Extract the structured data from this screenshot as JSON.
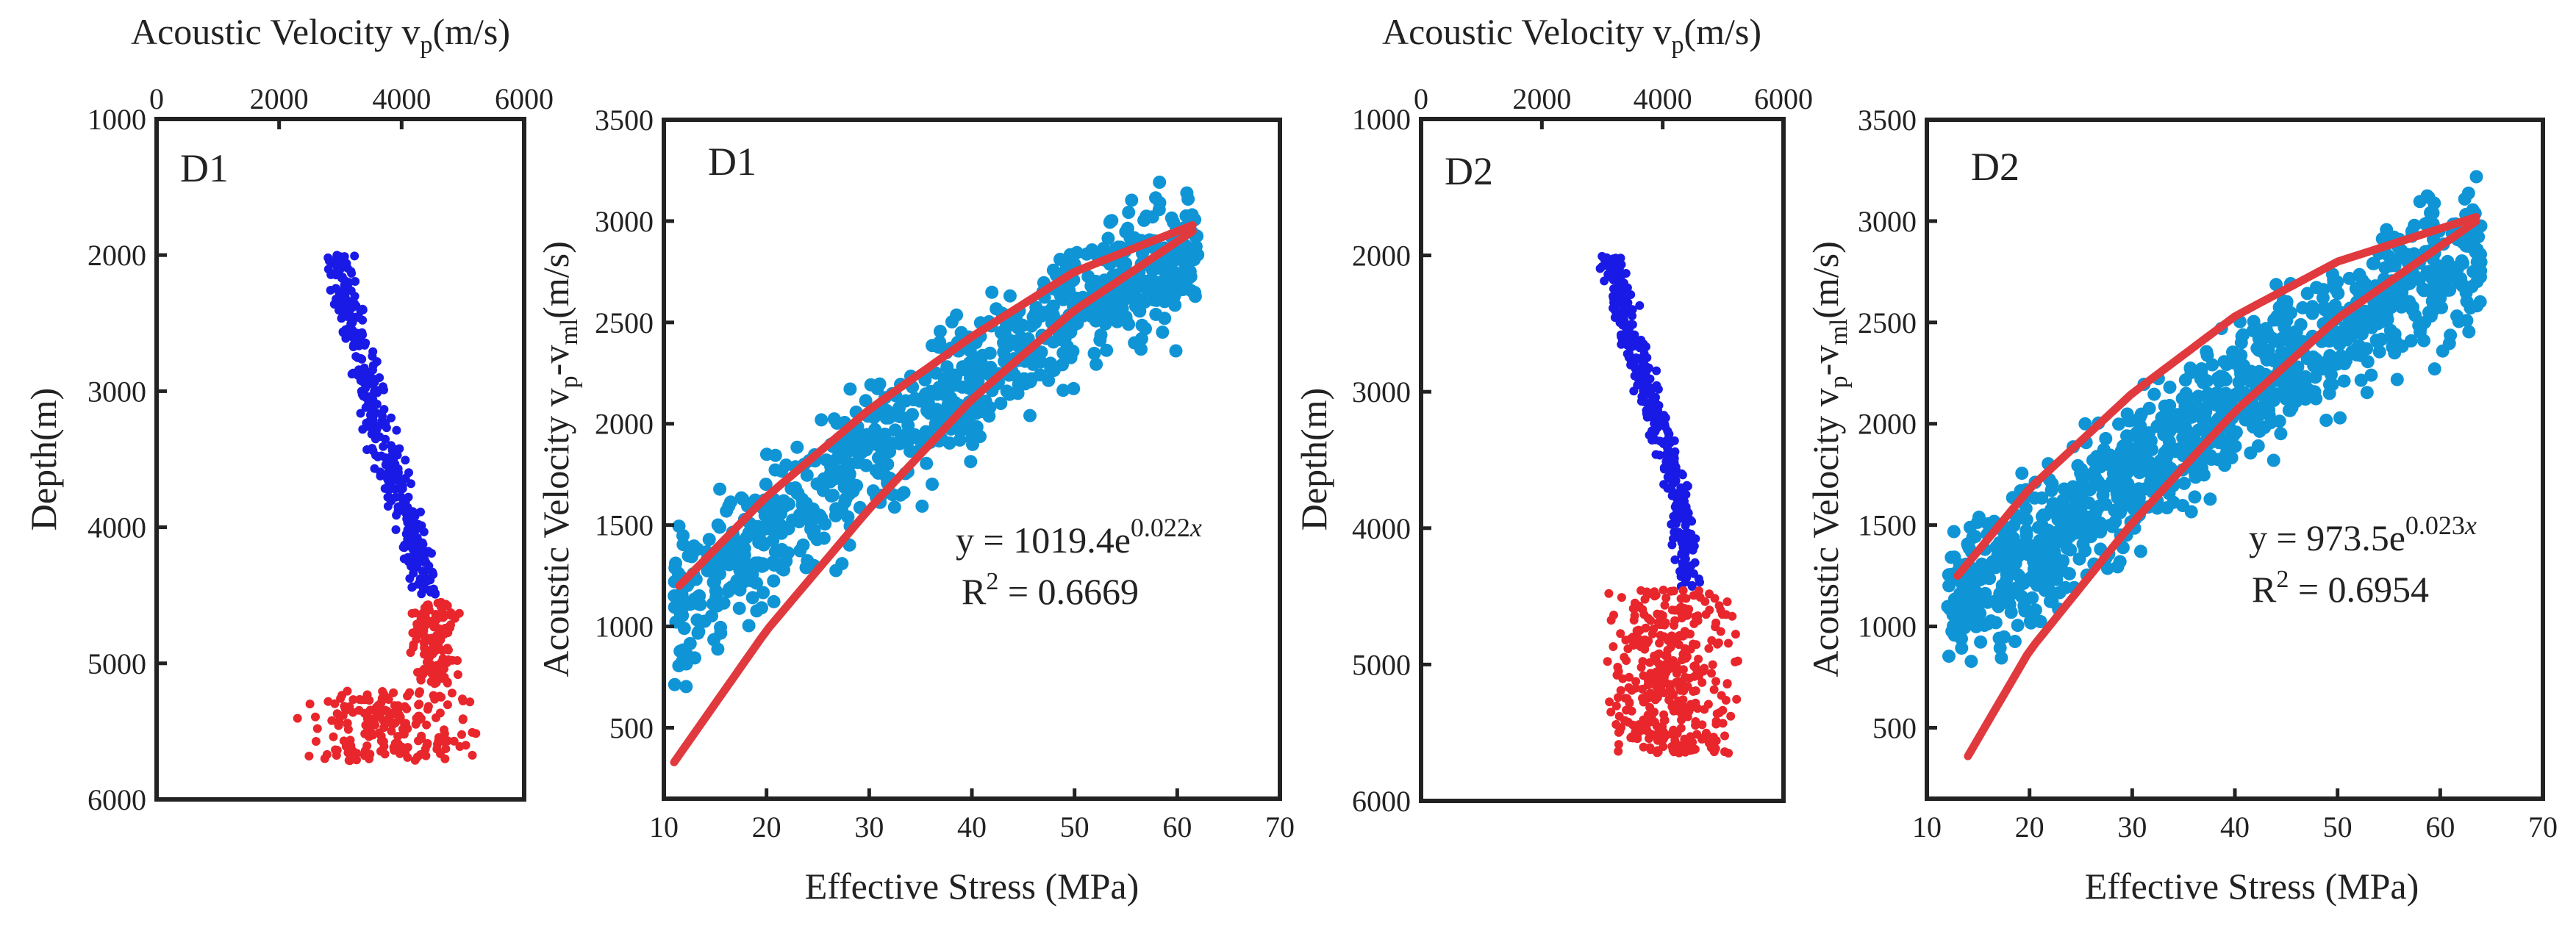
{
  "colors": {
    "shallow": "#1a1ae6",
    "deep": "#e8262c",
    "scatter": "#0f95d6",
    "fit": "#e03a3e"
  },
  "chart_data": [
    {
      "type": "scatter",
      "panel": "D1",
      "label": "D1",
      "title": "",
      "xlabel": "Acoustic Velocity v",
      "xlabel_sub": "p",
      "xlabel_unit": "(m/s)",
      "ylabel": "Depth(m)",
      "xlim": [
        0,
        6000
      ],
      "ylim": [
        1000,
        6000
      ],
      "y_inverted": true,
      "x_axis_position": "top",
      "xticks": [
        "0",
        "2000",
        "4000",
        "6000"
      ],
      "yticks": [
        "1000",
        "2000",
        "3000",
        "4000",
        "5000",
        "6000"
      ],
      "series": [
        {
          "name": "shallow",
          "color": "#1a1ae6",
          "profile": [
            [
              2000,
              2950
            ],
            [
              2300,
              3100
            ],
            [
              2700,
              3300
            ],
            [
              3000,
              3450
            ],
            [
              3400,
              3700
            ],
            [
              3800,
              4000
            ],
            [
              4200,
              4250
            ],
            [
              4450,
              4400
            ],
            [
              4500,
              4450
            ]
          ],
          "spread": 230,
          "count": 380
        },
        {
          "name": "deep",
          "color": "#e8262c",
          "groups": [
            {
              "depth_range": [
                4550,
                5150
              ],
              "velocity_range": [
                4100,
                5000
              ],
              "count": 130
            },
            {
              "depth_range": [
                5200,
                5720
              ],
              "velocity_range": [
                2200,
                5300
              ],
              "count": 200
            }
          ]
        }
      ]
    },
    {
      "type": "scatter",
      "panel": "D1",
      "label": "D1",
      "title": "",
      "xlabel": "Effective Stress (MPa)",
      "ylabel": "Acoustic Velocity v",
      "ylabel_sub": "p",
      "ylabel_mid": "-v",
      "ylabel_sub2": "ml",
      "ylabel_unit": "(m/s)",
      "xlim": [
        10,
        70
      ],
      "ylim": [
        150,
        3500
      ],
      "xticks": [
        "10",
        "20",
        "30",
        "40",
        "50",
        "60",
        "70"
      ],
      "yticks": [
        "500",
        "1000",
        "1500",
        "2000",
        "2500",
        "3000",
        "3500"
      ],
      "equation_lhs": "y = 1019.4e",
      "equation_exp": "0.022",
      "equation_var": "x",
      "r2_text": "R",
      "r2_sup": "2",
      "r2_value": " = 0.6669",
      "series": [
        {
          "name": "points",
          "color": "#0f95d6",
          "x_range": [
            11,
            62
          ],
          "trend": [
            [
              11,
              1050
            ],
            [
              20,
              1450
            ],
            [
              30,
              1850
            ],
            [
              40,
              2200
            ],
            [
              50,
              2550
            ],
            [
              55,
              2700
            ],
            [
              62,
              2800
            ]
          ],
          "spread": 330,
          "count": 850
        }
      ],
      "fit_curves": [
        {
          "name": "upper-envelope",
          "points": [
            [
              11.5,
              1200
            ],
            [
              20,
              1640
            ],
            [
              30,
              2070
            ],
            [
              40,
              2430
            ],
            [
              50,
              2750
            ],
            [
              61.5,
              2980
            ]
          ]
        },
        {
          "name": "lower-envelope",
          "points": [
            [
              11,
              330
            ],
            [
              20,
              980
            ],
            [
              30,
              1580
            ],
            [
              40,
              2120
            ],
            [
              50,
              2560
            ],
            [
              61.5,
              2950
            ]
          ]
        }
      ]
    },
    {
      "type": "scatter",
      "panel": "D2",
      "label": "D2",
      "title": "",
      "xlabel": "Acoustic Velocity v",
      "xlabel_sub": "p",
      "xlabel_unit": "(m/s)",
      "ylabel": "Depth(m)",
      "xlim": [
        0,
        6000
      ],
      "ylim": [
        1000,
        6000
      ],
      "y_inverted": true,
      "x_axis_position": "top",
      "xticks": [
        "0",
        "2000",
        "4000",
        "6000"
      ],
      "yticks": [
        "1000",
        "2000",
        "3000",
        "4000",
        "5000",
        "6000"
      ],
      "series": [
        {
          "name": "shallow",
          "color": "#1a1ae6",
          "profile": [
            [
              2000,
              3150
            ],
            [
              2500,
              3400
            ],
            [
              3000,
              3750
            ],
            [
              3400,
              4050
            ],
            [
              3800,
              4300
            ],
            [
              4200,
              4380
            ],
            [
              4430,
              4400
            ]
          ],
          "spread": 200,
          "count": 360
        },
        {
          "name": "deep",
          "color": "#e8262c",
          "groups": [
            {
              "depth_range": [
                4450,
                5650
              ],
              "velocity_range": [
                3000,
                5300
              ],
              "count": 380
            }
          ]
        }
      ]
    },
    {
      "type": "scatter",
      "panel": "D2",
      "label": "D2",
      "title": "",
      "xlabel": "Effective Stress (MPa)",
      "ylabel": "Acoustic Velocity v",
      "ylabel_sub": "p",
      "ylabel_mid": "-v",
      "ylabel_sub2": "ml",
      "ylabel_unit": "(m/s)",
      "xlim": [
        10,
        70
      ],
      "ylim": [
        150,
        3500
      ],
      "xticks": [
        "10",
        "20",
        "30",
        "40",
        "50",
        "60",
        "70"
      ],
      "yticks": [
        "500",
        "1000",
        "1500",
        "2000",
        "2500",
        "3000",
        "3500"
      ],
      "equation_lhs": "y = 973.5e",
      "equation_exp": "0.023",
      "equation_var": "x",
      "r2_text": "R",
      "r2_sup": "2",
      "r2_value": " = 0.6954",
      "series": [
        {
          "name": "points",
          "color": "#0f95d6",
          "x_range": [
            12,
            64
          ],
          "trend": [
            [
              12,
              1150
            ],
            [
              20,
              1350
            ],
            [
              30,
              1750
            ],
            [
              40,
              2150
            ],
            [
              50,
              2450
            ],
            [
              60,
              2750
            ],
            [
              64,
              2850
            ]
          ],
          "spread": 340,
          "count": 1100
        }
      ],
      "fit_curves": [
        {
          "name": "upper-envelope",
          "points": [
            [
              13,
              1250
            ],
            [
              20,
              1680
            ],
            [
              30,
              2150
            ],
            [
              40,
              2530
            ],
            [
              50,
              2800
            ],
            [
              63.5,
              3020
            ]
          ]
        },
        {
          "name": "lower-envelope",
          "points": [
            [
              14,
              360
            ],
            [
              20,
              880
            ],
            [
              30,
              1510
            ],
            [
              40,
              2060
            ],
            [
              50,
              2520
            ],
            [
              63.5,
              3000
            ]
          ]
        }
      ]
    }
  ]
}
